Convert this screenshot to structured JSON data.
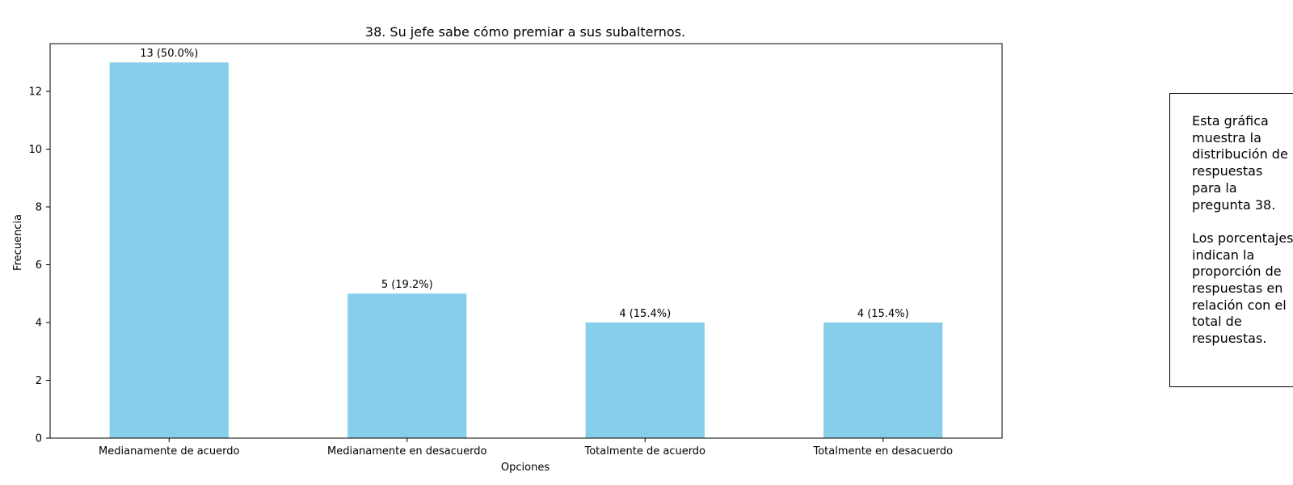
{
  "chart_data": {
    "type": "bar",
    "title": "38. Su jefe sabe cómo premiar a sus subalternos.",
    "xlabel": "Opciones",
    "ylabel": "Frecuencia",
    "categories": [
      "Medianamente de acuerdo",
      "Medianamente en desacuerdo",
      "Totalmente de acuerdo",
      "Totalmente en desacuerdo"
    ],
    "values": [
      13,
      5,
      4,
      4
    ],
    "percentages": [
      50.0,
      19.2,
      15.4,
      15.4
    ],
    "data_labels": [
      "13 (50.0%)",
      "5 (19.2%)",
      "4 (15.4%)",
      "4 (15.4%)"
    ],
    "ylim": [
      0,
      13.65
    ],
    "yticks": [
      0,
      2,
      4,
      6,
      8,
      10,
      12
    ],
    "bar_color": "#87CEEB",
    "grid": false,
    "legend": "none"
  },
  "note": {
    "text": "Esta gráfica muestra la distribución de respuestas para la pregunta 38.\n\nLos porcentajes indican la proporción de respuestas en relación con el total de respuestas."
  }
}
